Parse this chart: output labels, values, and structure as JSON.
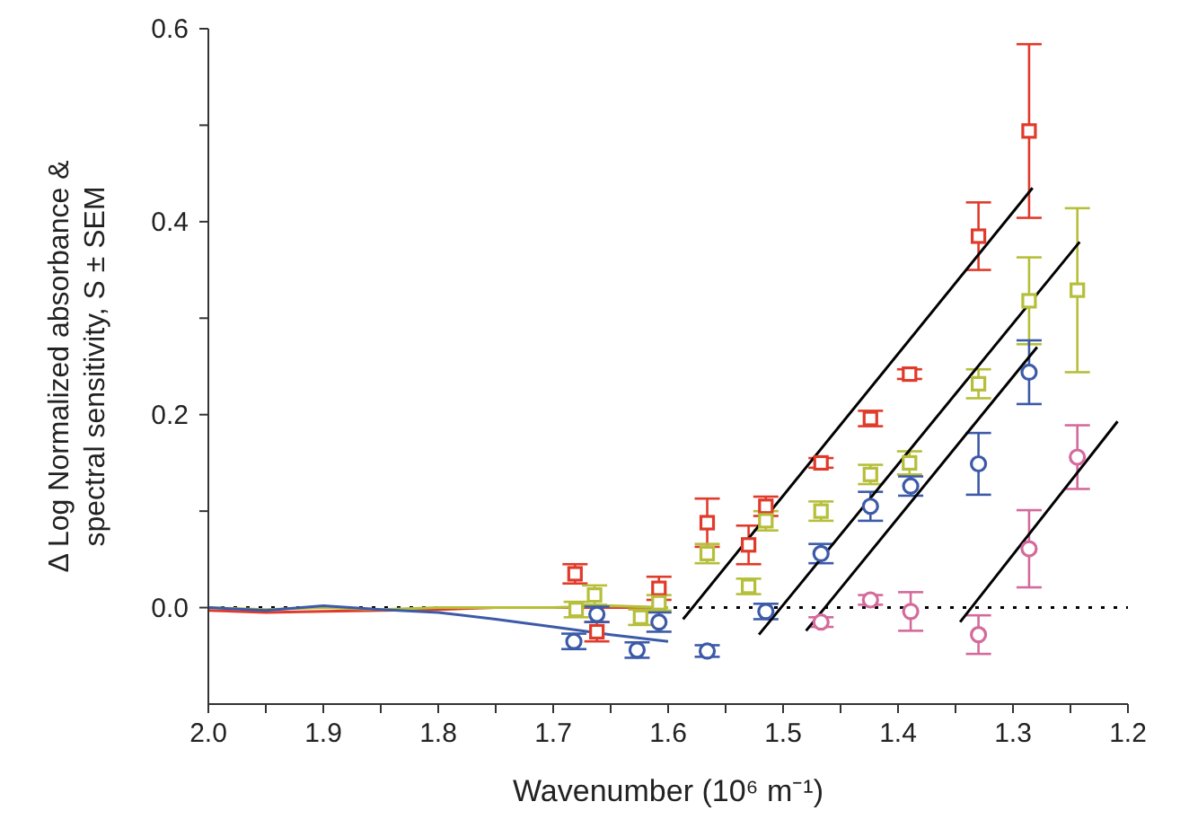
{
  "chart_data": {
    "type": "scatter",
    "xlabel": "Wavenumber (10⁶ m⁻¹)",
    "ylabel": "Δ Log Normalized absorbance &\nspectral sensitivity, S ± SEM",
    "xlim": [
      2.0,
      1.2
    ],
    "xticks": [
      {
        "value": 2.0,
        "label": "2.0"
      },
      {
        "value": 1.95,
        "label": null
      },
      {
        "value": 1.9,
        "label": "1.9"
      },
      {
        "value": 1.85,
        "label": null
      },
      {
        "value": 1.8,
        "label": "1.8"
      },
      {
        "value": 1.75,
        "label": null
      },
      {
        "value": 1.7,
        "label": "1.7"
      },
      {
        "value": 1.65,
        "label": null
      },
      {
        "value": 1.6,
        "label": "1.6"
      },
      {
        "value": 1.55,
        "label": null
      },
      {
        "value": 1.5,
        "label": "1.5"
      },
      {
        "value": 1.45,
        "label": null
      },
      {
        "value": 1.4,
        "label": "1.4"
      },
      {
        "value": 1.35,
        "label": null
      },
      {
        "value": 1.3,
        "label": "1.3"
      },
      {
        "value": 1.25,
        "label": null
      },
      {
        "value": 1.2,
        "label": "1.2"
      }
    ],
    "ylim": [
      -0.1,
      0.6
    ],
    "yticks": [
      {
        "value": 0.0,
        "label": "0.0"
      },
      {
        "value": 0.1,
        "label": null
      },
      {
        "value": 0.2,
        "label": "0.2"
      },
      {
        "value": 0.3,
        "label": null
      },
      {
        "value": 0.4,
        "label": "0.4"
      },
      {
        "value": 0.5,
        "label": null
      },
      {
        "value": 0.6,
        "label": "0.6"
      }
    ],
    "grid": false,
    "legend": false,
    "ref_lines": [
      {
        "axis": "y",
        "value": 0,
        "color": "#000000",
        "line_style": "dotted"
      }
    ],
    "series": [
      {
        "type": "line",
        "color": "#e03a2a",
        "x": [
          2.0,
          1.95,
          1.9,
          1.85,
          1.8,
          1.75,
          1.7,
          1.65,
          1.6
        ],
        "values": [
          -0.003,
          -0.005,
          -0.004,
          -0.003,
          -0.002,
          0.0,
          0.0,
          0.0,
          0.0
        ]
      },
      {
        "type": "line",
        "color": "#b5bf3a",
        "x": [
          2.0,
          1.95,
          1.9,
          1.85,
          1.8,
          1.75,
          1.7,
          1.65,
          1.6
        ],
        "values": [
          0.0,
          -0.002,
          0.0,
          -0.002,
          0.0,
          0.0,
          0.0,
          0.002,
          0.0
        ]
      },
      {
        "type": "line",
        "color": "#3c5aa8",
        "x": [
          2.0,
          1.95,
          1.9,
          1.85,
          1.8,
          1.75,
          1.7,
          1.65,
          1.6
        ],
        "values": [
          0.0,
          -0.003,
          0.002,
          -0.002,
          -0.005,
          -0.012,
          -0.02,
          -0.028,
          -0.035
        ]
      },
      {
        "color": "#e03a2a",
        "marker": "square",
        "x": [
          1.681,
          1.662,
          1.608,
          1.566,
          1.53,
          1.515,
          1.467,
          1.424,
          1.39,
          1.33,
          1.286
        ],
        "values": [
          0.035,
          -0.025,
          0.02,
          0.088,
          0.065,
          0.105,
          0.15,
          0.196,
          0.242,
          0.385,
          0.494
        ],
        "errors": [
          0.01,
          0.01,
          0.012,
          0.025,
          0.02,
          0.01,
          0.005,
          0.008,
          0.005,
          0.035,
          0.09
        ]
      },
      {
        "color": "#b5bf3a",
        "marker": "square",
        "x": [
          1.68,
          1.664,
          1.624,
          1.608,
          1.566,
          1.53,
          1.515,
          1.467,
          1.424,
          1.39,
          1.33,
          1.286,
          1.244
        ],
        "values": [
          -0.002,
          0.013,
          -0.01,
          0.005,
          0.056,
          0.022,
          0.09,
          0.1,
          0.138,
          0.15,
          0.232,
          0.318,
          0.329
        ],
        "errors": [
          0.008,
          0.01,
          0.008,
          0.008,
          0.01,
          0.008,
          0.01,
          0.01,
          0.01,
          0.012,
          0.015,
          0.045,
          0.085
        ]
      },
      {
        "color": "#3c5aa8",
        "marker": "circle",
        "x": [
          1.682,
          1.662,
          1.627,
          1.608,
          1.566,
          1.515,
          1.467,
          1.424,
          1.389,
          1.33,
          1.286
        ],
        "values": [
          -0.035,
          -0.007,
          -0.044,
          -0.015,
          -0.045,
          -0.004,
          0.056,
          0.105,
          0.126,
          0.149,
          0.244
        ],
        "errors": [
          0.008,
          0.008,
          0.008,
          0.01,
          0.006,
          0.008,
          0.01,
          0.015,
          0.01,
          0.032,
          0.033
        ]
      },
      {
        "color": "#d46a9c",
        "marker": "circle",
        "x": [
          1.467,
          1.424,
          1.389,
          1.33,
          1.286,
          1.244
        ],
        "values": [
          -0.015,
          0.008,
          -0.004,
          -0.028,
          0.061,
          0.156
        ],
        "errors": [
          0.005,
          0.005,
          0.02,
          0.02,
          0.04,
          0.033
        ]
      },
      {
        "type": "line",
        "color": "#000000",
        "x": [
          1.587,
          1.283
        ],
        "values": [
          -0.012,
          0.435
        ]
      },
      {
        "type": "line",
        "color": "#000000",
        "x": [
          1.521,
          1.242
        ],
        "values": [
          -0.028,
          0.379
        ]
      },
      {
        "type": "line",
        "color": "#000000",
        "x": [
          1.48,
          1.279
        ],
        "values": [
          -0.024,
          0.27
        ]
      },
      {
        "type": "line",
        "color": "#000000",
        "x": [
          1.346,
          1.209
        ],
        "values": [
          -0.015,
          0.193
        ]
      }
    ]
  }
}
